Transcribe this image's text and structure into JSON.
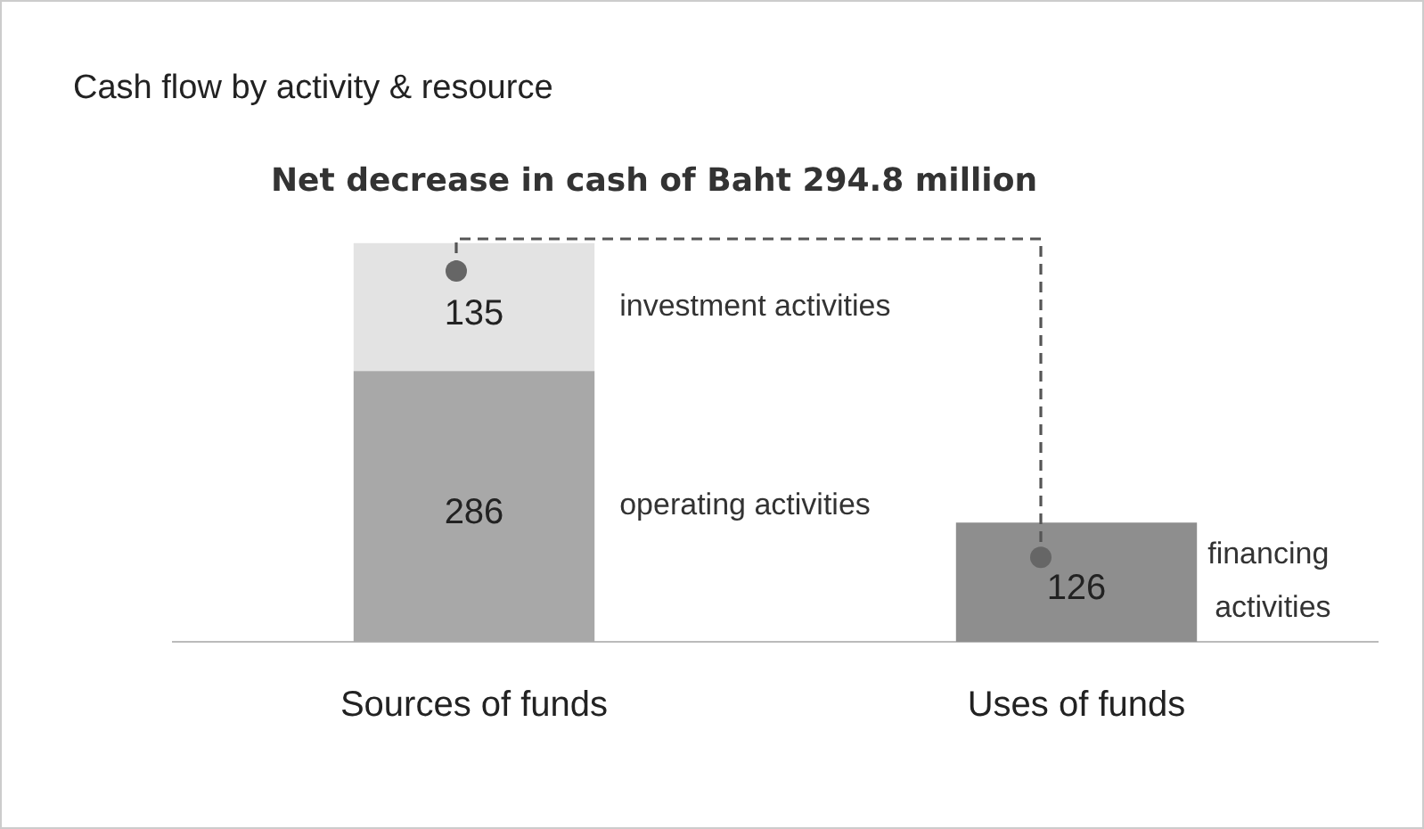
{
  "chart_data": {
    "type": "bar",
    "title": "Cash flow by activity & resource",
    "subtitle": "Net decrease in cash of Baht 294.8 million",
    "categories": [
      "Sources of funds",
      "Uses of funds"
    ],
    "stacked": true,
    "data_labels": true,
    "legend": false,
    "tick_labels": "x",
    "series": [
      {
        "name": "operating activities",
        "color": "#a8a8a8",
        "values": [
          286,
          null
        ]
      },
      {
        "name": "investment activities",
        "color": "#e3e3e3",
        "values": [
          135,
          null
        ]
      },
      {
        "name": "financing activities",
        "color": "#8e8e8e",
        "values": [
          null,
          126
        ]
      }
    ]
  }
}
